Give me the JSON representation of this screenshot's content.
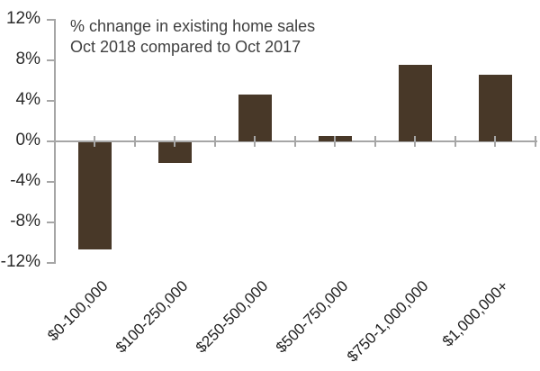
{
  "chart_data": {
    "type": "bar",
    "title_line1": "% chnange in existing home sales",
    "title_line2": "Oct 2018 compared to Oct 2017",
    "categories": [
      "$0-100,000",
      "$100-250,000",
      "$250-500,000",
      "$500-750,000",
      "$750-1,000,000",
      "$1,000,000+"
    ],
    "values": [
      -10.6,
      -2.0,
      4.6,
      0.5,
      7.6,
      6.6
    ],
    "ylim": [
      -12,
      12
    ],
    "ytick_step": 4,
    "ytick_labels": [
      "12%",
      "8%",
      "4%",
      "0%",
      "-4%",
      "-8%",
      "-12%"
    ],
    "xlabel": "",
    "ylabel": "",
    "grid": "off",
    "legend": "none",
    "bar_color": "#483828",
    "axis_color": "#a6a6a6",
    "title_color": "#404040",
    "ylabel_color": "#2b2b2b",
    "xlabel_color": "#1f1f1f"
  }
}
